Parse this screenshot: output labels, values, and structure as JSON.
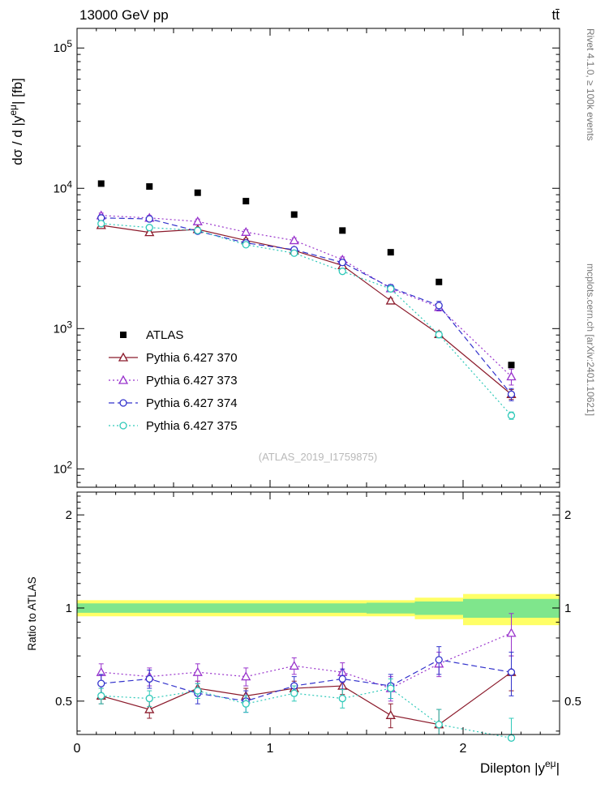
{
  "header": {
    "title_left": "13000 GeV pp",
    "title_right": "tt̄"
  },
  "side_notes": {
    "top_rotated": "Rivet 4.1.0, ≥ 100k events",
    "bottom_rotated": "mcplots.cern.ch [arXiv:2401.10621]"
  },
  "watermark": "(ATLAS_2019_I1759875)",
  "labels": {
    "ylabel_top_parts": [
      "dσ / d |y",
      "eμ",
      "| [fb]"
    ],
    "ylabel_ratio": "Ratio to ATLAS",
    "xlabel_parts": [
      "Dilepton |y",
      "eμ",
      "|"
    ]
  },
  "chart_data": {
    "type": "scatter",
    "title": "13000 GeV pp, ttbar, dilepton rapidity differential cross-section",
    "xlabel": "Dilepton |y^{eμ}|",
    "ylabel": "dσ / d |y^{eμ}| [fb]",
    "x": [
      0.125,
      0.375,
      0.625,
      0.875,
      1.125,
      1.375,
      1.625,
      1.875,
      2.25
    ],
    "bin_edges": [
      0,
      0.25,
      0.5,
      0.75,
      1.0,
      1.25,
      1.5,
      1.75,
      2.0,
      2.5
    ],
    "xlim": [
      0,
      2.5
    ],
    "xticks": [
      0,
      1,
      2
    ],
    "top_panel": {
      "yscale": "log",
      "ylim": [
        74,
        138000
      ],
      "ytick_exponents": [
        2,
        3,
        4,
        5
      ]
    },
    "ratio_panel": {
      "yscale": "log",
      "ylim": [
        0.39,
        2.37
      ],
      "yticks": [
        0.5,
        1,
        2
      ],
      "ylabel": "Ratio to ATLAS"
    },
    "series": [
      {
        "name": "ATLAS",
        "color": "#000000",
        "marker": "square-filled",
        "line": "none",
        "values": [
          10800,
          10300,
          9300,
          8100,
          6500,
          5000,
          3500,
          2150,
          550
        ],
        "err_frac": [
          0.02,
          0.02,
          0.02,
          0.02,
          0.02,
          0.02,
          0.025,
          0.03,
          0.04
        ]
      },
      {
        "name": "Pythia 6.427 370",
        "color": "#8b1a2b",
        "marker": "triangle-open",
        "line": "solid",
        "values": [
          5450,
          4850,
          5100,
          4250,
          3600,
          2820,
          1580,
          910,
          340
        ],
        "err_frac": [
          0.03,
          0.03,
          0.03,
          0.03,
          0.03,
          0.035,
          0.04,
          0.05,
          0.08
        ],
        "ratio": [
          0.52,
          0.47,
          0.55,
          0.52,
          0.55,
          0.56,
          0.45,
          0.42,
          0.62
        ],
        "ratio_err": [
          0.03,
          0.03,
          0.03,
          0.03,
          0.03,
          0.035,
          0.04,
          0.05,
          0.08
        ]
      },
      {
        "name": "Pythia 6.427 373",
        "color": "#9933cc",
        "marker": "triangle-open",
        "line": "dot",
        "values": [
          6400,
          6150,
          5800,
          4870,
          4250,
          3100,
          1930,
          1420,
          455
        ],
        "err_frac": [
          0.04,
          0.04,
          0.04,
          0.04,
          0.04,
          0.045,
          0.05,
          0.06,
          0.13
        ],
        "ratio": [
          0.62,
          0.6,
          0.62,
          0.6,
          0.65,
          0.62,
          0.55,
          0.66,
          0.83
        ],
        "ratio_err": [
          0.04,
          0.04,
          0.04,
          0.04,
          0.04,
          0.045,
          0.05,
          0.06,
          0.13
        ]
      },
      {
        "name": "Pythia 6.427 374",
        "color": "#3333cc",
        "marker": "circle-open",
        "line": "dash",
        "values": [
          6150,
          6050,
          4950,
          4080,
          3650,
          2960,
          1960,
          1460,
          340
        ],
        "err_frac": [
          0.04,
          0.04,
          0.04,
          0.04,
          0.04,
          0.045,
          0.05,
          0.07,
          0.1
        ],
        "ratio": [
          0.57,
          0.59,
          0.53,
          0.5,
          0.56,
          0.59,
          0.56,
          0.68,
          0.62
        ],
        "ratio_err": [
          0.04,
          0.04,
          0.04,
          0.04,
          0.04,
          0.045,
          0.05,
          0.07,
          0.1
        ]
      },
      {
        "name": "Pythia 6.427 375",
        "color": "#2fc9b9",
        "marker": "circle-open",
        "line": "dot",
        "values": [
          5600,
          5250,
          5000,
          3960,
          3450,
          2560,
          1920,
          905,
          240
        ],
        "err_frac": [
          0.03,
          0.03,
          0.03,
          0.03,
          0.03,
          0.035,
          0.04,
          0.05,
          0.06
        ],
        "ratio": [
          0.52,
          0.51,
          0.54,
          0.49,
          0.53,
          0.51,
          0.55,
          0.42,
          0.38
        ],
        "ratio_err": [
          0.03,
          0.03,
          0.03,
          0.03,
          0.03,
          0.035,
          0.04,
          0.05,
          0.06
        ]
      }
    ],
    "bands": {
      "yellow": {
        "color": "#ffff66",
        "lo": [
          0.94,
          0.94,
          0.94,
          0.94,
          0.94,
          0.94,
          0.94,
          0.92,
          0.88
        ],
        "hi": [
          1.06,
          1.06,
          1.06,
          1.06,
          1.06,
          1.06,
          1.06,
          1.08,
          1.11
        ]
      },
      "green": {
        "color": "#7fe68c",
        "lo": [
          0.965,
          0.965,
          0.965,
          0.965,
          0.965,
          0.965,
          0.96,
          0.95,
          0.93
        ],
        "hi": [
          1.035,
          1.035,
          1.035,
          1.035,
          1.035,
          1.035,
          1.04,
          1.05,
          1.07
        ]
      }
    },
    "legend_position": "center-left"
  }
}
